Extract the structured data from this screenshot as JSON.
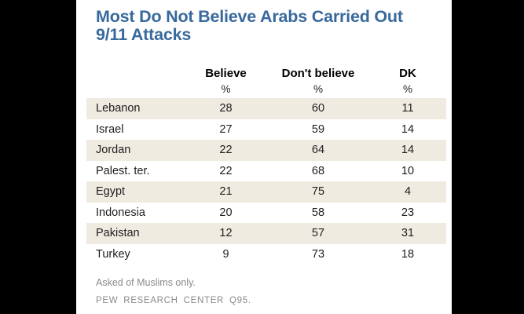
{
  "chart_data": {
    "type": "table",
    "title": "Most Do Not Believe Arabs Carried Out 9/11 Attacks",
    "columns": [
      "Believe",
      "Don't believe",
      "DK"
    ],
    "unit": "%",
    "rows": [
      {
        "country": "Lebanon",
        "values": [
          28,
          60,
          11
        ]
      },
      {
        "country": "Israel",
        "values": [
          27,
          59,
          14
        ]
      },
      {
        "country": "Jordan",
        "values": [
          22,
          64,
          14
        ]
      },
      {
        "country": "Palest. ter.",
        "values": [
          22,
          68,
          10
        ]
      },
      {
        "country": "Egypt",
        "values": [
          21,
          75,
          4
        ]
      },
      {
        "country": "Indonesia",
        "values": [
          20,
          58,
          23
        ]
      },
      {
        "country": "Pakistan",
        "values": [
          12,
          57,
          31
        ]
      },
      {
        "country": "Turkey",
        "values": [
          9,
          73,
          18
        ]
      }
    ],
    "footnote": "Asked of Muslims only.",
    "source": "PEW RESEARCH  CENTER Q95.",
    "layout": {
      "legend": "none",
      "grid": "row-banding"
    }
  },
  "colors": {
    "title_blue": "#38699C",
    "row_shade": "#EFEBE1",
    "footnote_gray": "#8A8A8A",
    "background": "#000000",
    "panel": "#FFFFFF"
  }
}
